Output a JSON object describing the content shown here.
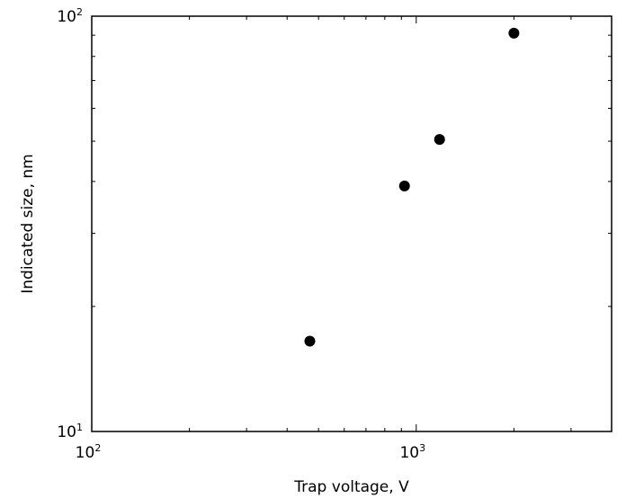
{
  "chart_data": {
    "type": "scatter",
    "title": "",
    "xlabel": "Trap voltage, V",
    "ylabel": "Indicated size, nm",
    "x_scale": "log",
    "y_scale": "log",
    "xlim": [
      100,
      4000
    ],
    "ylim": [
      10,
      100
    ],
    "grid": false,
    "legend": "none",
    "marker_color": "#000000",
    "x_ticks": [
      {
        "base": "10",
        "exp": "2",
        "value": 100
      },
      {
        "base": "10",
        "exp": "3",
        "value": 1000
      }
    ],
    "y_ticks": [
      {
        "base": "10",
        "exp": "1",
        "value": 10
      },
      {
        "base": "10",
        "exp": "2",
        "value": 100
      }
    ],
    "points": [
      {
        "x": 470,
        "y": 16.5
      },
      {
        "x": 920,
        "y": 39.0
      },
      {
        "x": 1180,
        "y": 50.5
      },
      {
        "x": 2000,
        "y": 91.0
      }
    ]
  }
}
